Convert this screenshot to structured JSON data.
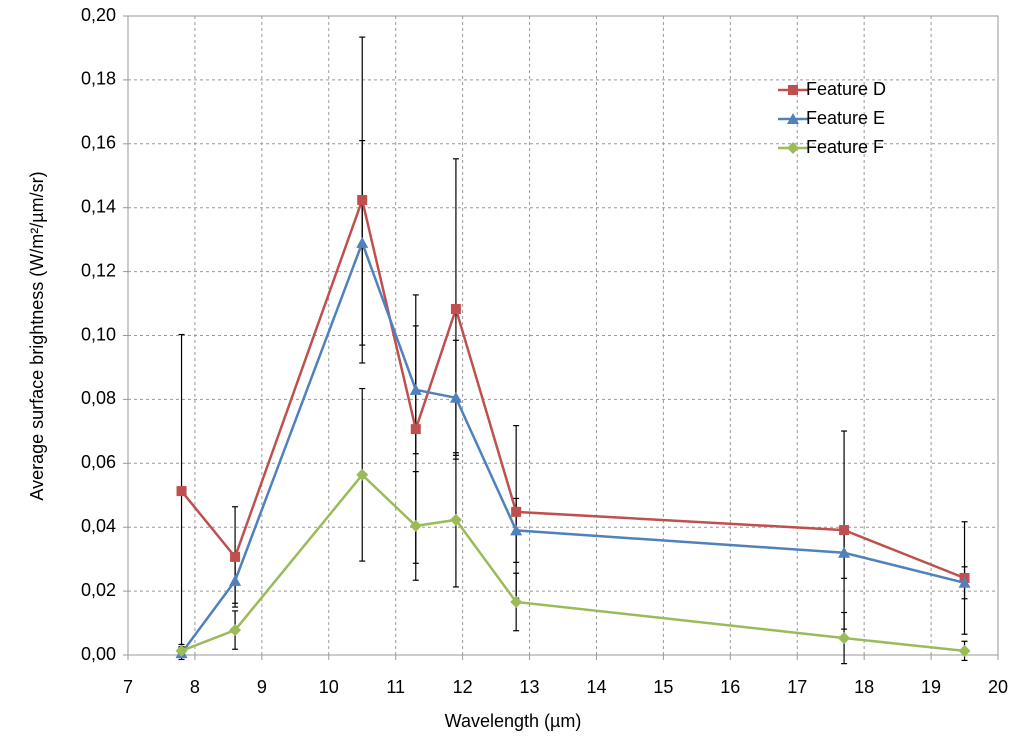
{
  "chart_data": {
    "type": "line",
    "x_label": "Wavelength (µm)",
    "y_label": "Average surface brightness (W/m²/µm/sr)",
    "xlim": [
      7,
      20
    ],
    "xticks": [
      7,
      8,
      9,
      10,
      11,
      12,
      13,
      14,
      15,
      16,
      17,
      18,
      19,
      20
    ],
    "ylim": [
      0,
      0.2
    ],
    "yticks": [
      {
        "value": 0,
        "label": "0,00"
      },
      {
        "value": 0.02,
        "label": "0,02"
      },
      {
        "value": 0.04,
        "label": "0,04"
      },
      {
        "value": 0.06,
        "label": "0,06"
      },
      {
        "value": 0.08,
        "label": "0,08"
      },
      {
        "value": 0.1,
        "label": "0,10"
      },
      {
        "value": 0.12,
        "label": "0,12"
      },
      {
        "value": 0.14,
        "label": "0,14"
      },
      {
        "value": 0.16,
        "label": "0,16"
      },
      {
        "value": 0.18,
        "label": "0,18"
      },
      {
        "value": 0.2,
        "label": "0,20"
      }
    ],
    "grid": true,
    "legend": "top-right",
    "x": [
      7.8,
      8.6,
      10.5,
      11.3,
      11.9,
      12.8,
      17.7,
      19.5
    ],
    "series": [
      {
        "name": "Feature D",
        "color": "#c0504d",
        "marker": "square",
        "values": [
          0.0513,
          0.0307,
          0.1424,
          0.0707,
          0.1083,
          0.0448,
          0.0391,
          0.0241
        ],
        "error": [
          0.049,
          0.0157,
          0.051,
          0.042,
          0.047,
          0.027,
          0.031,
          0.0176
        ]
      },
      {
        "name": "Feature E",
        "color": "#4f81bd",
        "marker": "triangle",
        "values": [
          0.0006,
          0.0232,
          0.129,
          0.083,
          0.0805,
          0.039,
          0.032,
          0.0226
        ],
        "error": [
          0.002,
          0.007,
          0.032,
          0.02,
          0.018,
          0.01,
          0.008,
          0.005
        ]
      },
      {
        "name": "Feature F",
        "color": "#9bbb59",
        "marker": "diamond",
        "values": [
          0.0013,
          0.0078,
          0.0564,
          0.0404,
          0.0423,
          0.0166,
          0.0053,
          0.0013
        ],
        "error": [
          0.002,
          0.006,
          0.027,
          0.017,
          0.021,
          0.009,
          0.008,
          0.003
        ]
      }
    ]
  }
}
